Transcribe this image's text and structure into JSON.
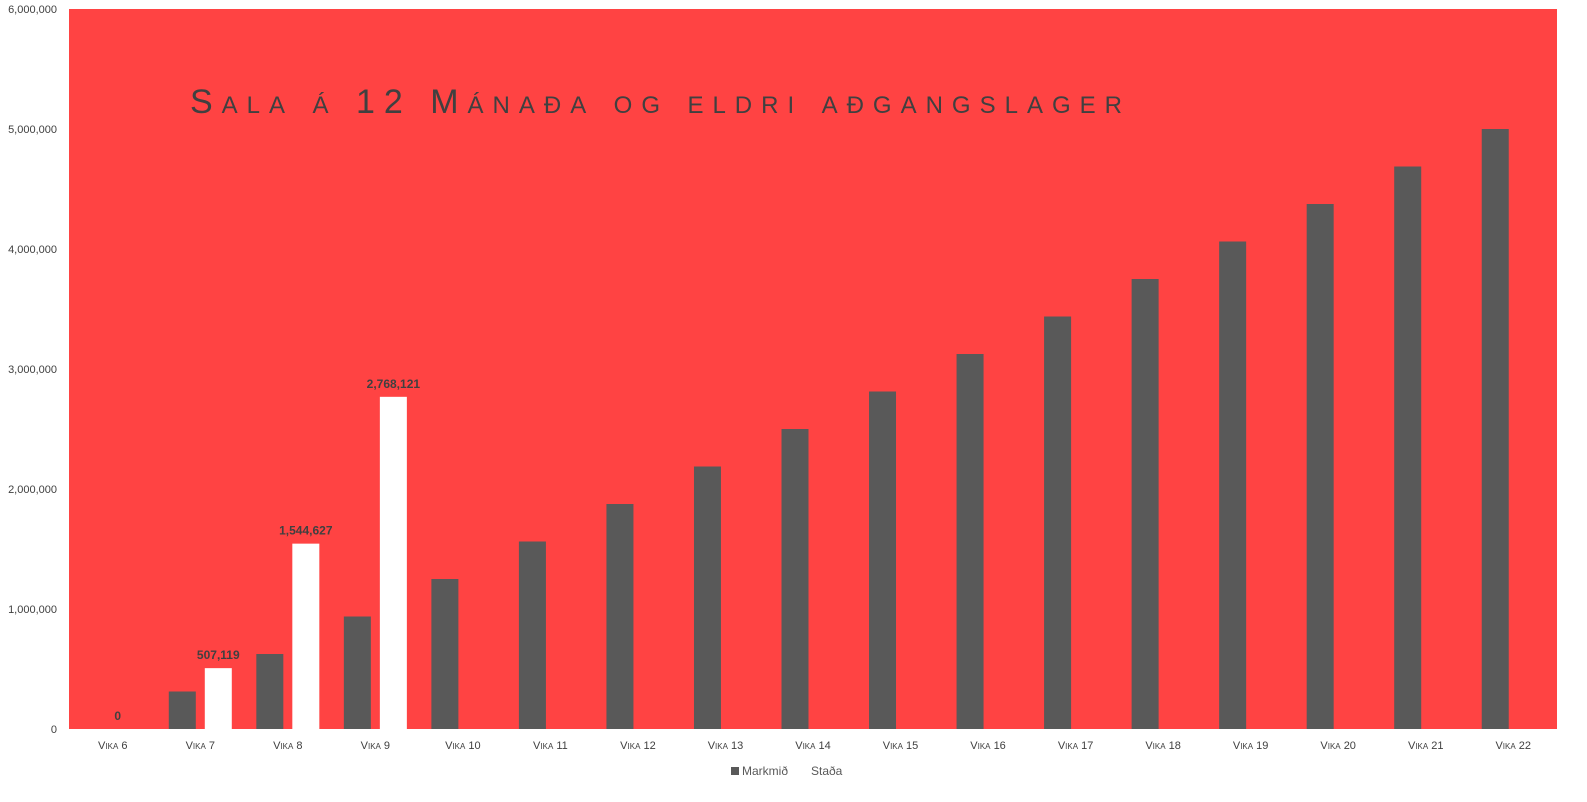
{
  "chart_data": {
    "type": "bar",
    "title": "Sala á 12 Mánaða og eldri  aðgangslager",
    "xlabel": "",
    "ylabel": "",
    "ylim": [
      0,
      6000000
    ],
    "yticks": [
      "0",
      "1,000,000",
      "2,000,000",
      "3,000,000",
      "4,000,000",
      "5,000,000",
      "6,000,000"
    ],
    "categories": [
      "Vika 6",
      "Vika 7",
      "Vika 8",
      "Vika 9",
      "Vika 10",
      "Vika 11",
      "Vika 12",
      "Vika 13",
      "Vika 14",
      "Vika 15",
      "Vika 16",
      "Vika 17",
      "Vika 18",
      "Vika 19",
      "Vika 20",
      "Vika 21",
      "Vika 22"
    ],
    "series": [
      {
        "name": "Markmið",
        "color": "#595959",
        "values": [
          0,
          312500,
          625000,
          937500,
          1250000,
          1562500,
          1875000,
          2187500,
          2500000,
          2812500,
          3125000,
          3437500,
          3750000,
          4062500,
          4375000,
          4687500,
          5000000
        ]
      },
      {
        "name": "Staða",
        "color": "#ffffff",
        "values": [
          0,
          507119,
          1544627,
          2768121,
          null,
          null,
          null,
          null,
          null,
          null,
          null,
          null,
          null,
          null,
          null,
          null,
          null
        ],
        "data_labels": [
          "0",
          "507,119",
          "1,544,627",
          "2,768,121"
        ]
      }
    ],
    "grid": false,
    "legend": "bottom",
    "plot_background": "#ff4343"
  }
}
